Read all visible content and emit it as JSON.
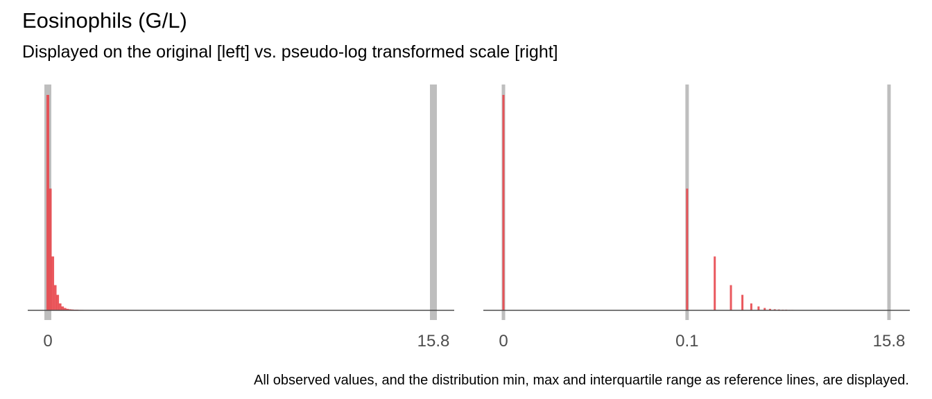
{
  "title": "Eosinophils (G/L)",
  "subtitle": "Displayed on the original [left] vs. pseudo-log transformed scale [right]",
  "caption": "All observed values, and the distribution min, max and interquartile range as reference lines, are displayed.",
  "colors": {
    "bar": "#e8474c",
    "refline": "#bebebe",
    "axis": "#4d4d4d"
  },
  "chart_data": [
    {
      "type": "bar",
      "name": "original scale",
      "x_scale": "linear",
      "xlim": [
        0,
        15.8
      ],
      "reference_lines": [
        0,
        0.0,
        0.0,
        15.8
      ],
      "tick_labels": [
        {
          "value": 0,
          "label": "0"
        },
        {
          "value": 15.8,
          "label": "15.8"
        }
      ],
      "x": [
        0.0,
        0.1,
        0.2,
        0.3,
        0.4,
        0.5,
        0.6,
        0.7,
        0.8,
        0.9,
        1.0,
        1.1,
        1.2,
        1.3,
        1.4
      ],
      "values": [
        1.0,
        0.565,
        0.25,
        0.117,
        0.072,
        0.032,
        0.018,
        0.011,
        0.007,
        0.005,
        0.004,
        0.003,
        0.003,
        0.002,
        0.002
      ],
      "grid": false
    },
    {
      "type": "bar",
      "name": "pseudo-log scale",
      "x_scale": "pseudo-log",
      "xlim": [
        0,
        15.8
      ],
      "reference_lines": [
        0,
        0.1,
        15.8
      ],
      "tick_labels": [
        {
          "value": 0,
          "label": "0"
        },
        {
          "value": 0.1,
          "label": "0.1"
        },
        {
          "value": 15.8,
          "label": "15.8"
        }
      ],
      "x": [
        0.0,
        0.1,
        0.2,
        0.3,
        0.4,
        0.5,
        0.6,
        0.7,
        0.8,
        0.9,
        1.0,
        1.1,
        1.2,
        1.3,
        1.4
      ],
      "values": [
        1.0,
        0.565,
        0.25,
        0.117,
        0.072,
        0.032,
        0.018,
        0.011,
        0.007,
        0.005,
        0.004,
        0.003,
        0.003,
        0.002,
        0.002
      ],
      "grid": false
    }
  ]
}
